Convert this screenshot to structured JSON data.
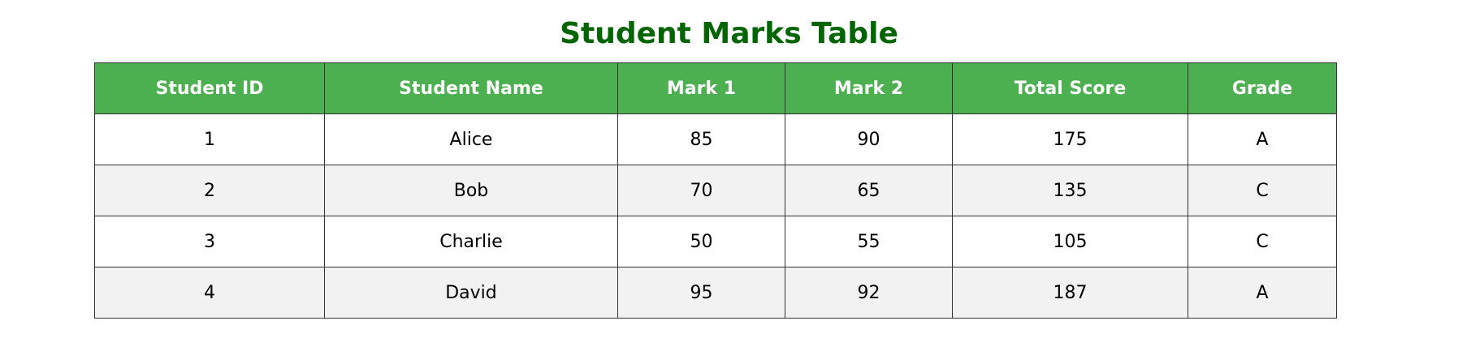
{
  "title": "Student Marks Table",
  "colors": {
    "title": "#006400",
    "header_bg": "#4caf50",
    "header_text": "#ffffff",
    "row_alt_bg": "#f2f2f2",
    "border": "#333333"
  },
  "table": {
    "headers": [
      "Student ID",
      "Student Name",
      "Mark 1",
      "Mark 2",
      "Total Score",
      "Grade"
    ],
    "rows": [
      [
        "1",
        "Alice",
        "85",
        "90",
        "175",
        "A"
      ],
      [
        "2",
        "Bob",
        "70",
        "65",
        "135",
        "C"
      ],
      [
        "3",
        "Charlie",
        "50",
        "55",
        "105",
        "C"
      ],
      [
        "4",
        "David",
        "95",
        "92",
        "187",
        "A"
      ]
    ]
  }
}
